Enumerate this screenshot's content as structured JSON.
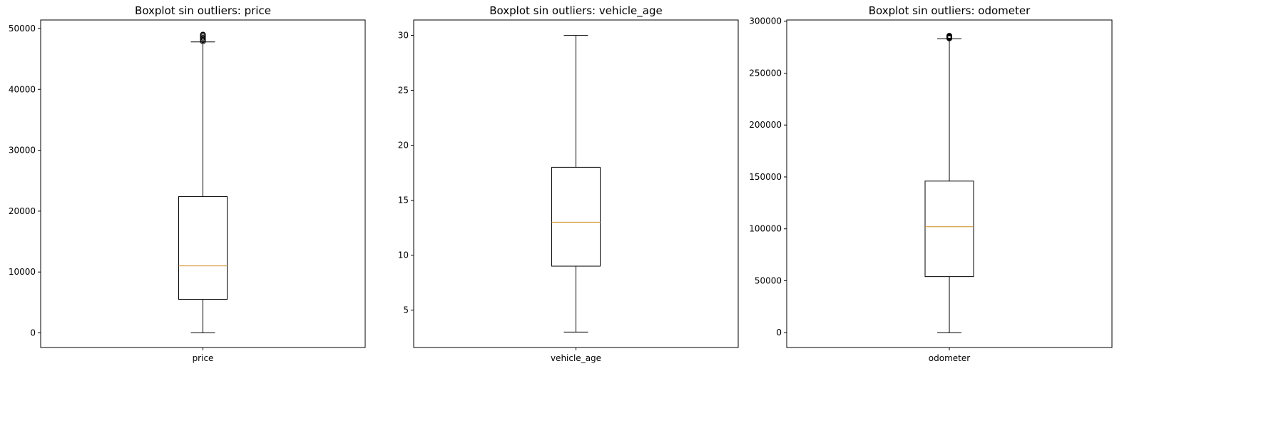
{
  "chart_data": [
    {
      "type": "box",
      "title": "Boxplot sin outliers: price",
      "category": "price",
      "ylim": [
        -2400,
        51400
      ],
      "yticks": [
        0,
        10000,
        20000,
        30000,
        40000,
        50000
      ],
      "whisker_low": 0,
      "q1": 5500,
      "median": 11000,
      "q3": 22400,
      "whisker_high": 47800,
      "fliers": [
        47900,
        48100,
        48300,
        48500,
        48700,
        48900,
        49000
      ],
      "colors": {
        "box": "#000000",
        "median": "#d08a1f"
      }
    },
    {
      "type": "box",
      "title": "Boxplot sin outliers: vehicle_age",
      "category": "vehicle_age",
      "ylim": [
        1.6,
        31.4
      ],
      "yticks": [
        5,
        10,
        15,
        20,
        25,
        30
      ],
      "whisker_low": 3,
      "q1": 9,
      "median": 13,
      "q3": 18,
      "whisker_high": 30,
      "fliers": [],
      "colors": {
        "box": "#000000",
        "median": "#d08a1f"
      }
    },
    {
      "type": "box",
      "title": "Boxplot sin outliers: odometer",
      "category": "odometer",
      "ylim": [
        -14300,
        301200
      ],
      "yticks": [
        0,
        50000,
        100000,
        150000,
        200000,
        250000,
        300000
      ],
      "whisker_low": 0,
      "q1": 54000,
      "median": 102000,
      "q3": 146000,
      "whisker_high": 283000,
      "fliers": [
        283500,
        284000,
        284500,
        285000,
        285500,
        286000
      ],
      "colors": {
        "box": "#000000",
        "median": "#d08a1f"
      }
    }
  ]
}
